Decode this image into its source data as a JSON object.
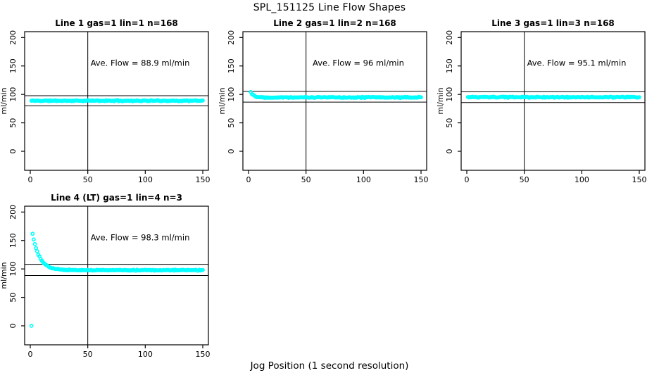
{
  "figure": {
    "title": "SPL_151125  Line Flow Shapes",
    "xlabel": "Jog Position (1 second resolution)",
    "background_color": "#ffffff",
    "point_color": "#00ffff",
    "axis_color": "#000000",
    "text_color": "#000000"
  },
  "chart_data": [
    {
      "type": "scatter",
      "title": "Line 1 gas=1 lin=1 n=168",
      "annotation": "Ave. Flow =  88.9  ml/min",
      "avg_flow_ml_min": 88.9,
      "n_points": 168,
      "ylabel": "ml/min",
      "x_ticks": [
        0,
        50,
        100,
        150
      ],
      "y_ticks": [
        0,
        50,
        100,
        150,
        200
      ],
      "xlim": [
        -4.9,
        154.9
      ],
      "ylim": [
        -33.4,
        210.3
      ],
      "grid": false,
      "ref_vline_x": 50,
      "ref_hlines": [
        80.0,
        97.8
      ],
      "series": {
        "name": "line-1-flow",
        "marker": "open-circle",
        "x_start": 1,
        "x_end": 150,
        "x_step": 1,
        "baseline": 88.9,
        "transient_amp": 0,
        "transient_x0": 1,
        "transient_tau": 1,
        "noise": 1.1,
        "seed": 11,
        "extra_points": []
      },
      "sample_points": [
        [
          1,
          88.5
        ],
        [
          10,
          89.2
        ],
        [
          25,
          88.3
        ],
        [
          50,
          89.0
        ],
        [
          75,
          88.6
        ],
        [
          100,
          89.1
        ],
        [
          125,
          88.8
        ],
        [
          150,
          88.9
        ]
      ]
    },
    {
      "type": "scatter",
      "title": "Line 2 gas=1 lin=2 n=168",
      "annotation": "Ave. Flow =  96  ml/min",
      "avg_flow_ml_min": 96,
      "n_points": 168,
      "ylabel": "ml/min",
      "x_ticks": [
        0,
        50,
        100,
        150
      ],
      "y_ticks": [
        0,
        50,
        100,
        150,
        200
      ],
      "xlim": [
        -4.9,
        154.9
      ],
      "ylim": [
        -33.4,
        210.3
      ],
      "grid": false,
      "ref_vline_x": 50,
      "ref_hlines": [
        86.4,
        105.6
      ],
      "series": {
        "name": "line-2-flow",
        "marker": "open-circle",
        "x_start": 2,
        "x_end": 150,
        "x_step": 1,
        "baseline": 94.8,
        "transient_amp": 9.5,
        "transient_x0": 2,
        "transient_tau": 2.5,
        "noise": 1.1,
        "seed": 22,
        "extra_points": []
      },
      "sample_points": [
        [
          2,
          104
        ],
        [
          4,
          99
        ],
        [
          6,
          96.5
        ],
        [
          10,
          95.2
        ],
        [
          50,
          94.9
        ],
        [
          100,
          94.6
        ],
        [
          150,
          94.7
        ]
      ]
    },
    {
      "type": "scatter",
      "title": "Line 3 gas=1 lin=3 n=168",
      "annotation": "Ave. Flow =  95.1  ml/min",
      "avg_flow_ml_min": 95.1,
      "n_points": 168,
      "ylabel": "ml/min",
      "x_ticks": [
        0,
        50,
        100,
        150
      ],
      "y_ticks": [
        0,
        50,
        100,
        150,
        200
      ],
      "xlim": [
        -4.9,
        154.9
      ],
      "ylim": [
        -33.4,
        210.3
      ],
      "grid": false,
      "ref_vline_x": 50,
      "ref_hlines": [
        85.6,
        104.6
      ],
      "series": {
        "name": "line-3-flow",
        "marker": "open-circle",
        "x_start": 1,
        "x_end": 150,
        "x_step": 1,
        "baseline": 95.1,
        "transient_amp": 0,
        "transient_x0": 1,
        "transient_tau": 1,
        "noise": 1.1,
        "seed": 33,
        "extra_points": []
      },
      "sample_points": [
        [
          1,
          95.5
        ],
        [
          10,
          95.0
        ],
        [
          25,
          95.3
        ],
        [
          50,
          94.9
        ],
        [
          75,
          95.2
        ],
        [
          100,
          95.0
        ],
        [
          125,
          95.1
        ],
        [
          150,
          95.0
        ]
      ]
    },
    {
      "type": "scatter",
      "title": "Line 4 (LT) gas=1 lin=4 n=3",
      "annotation": "Ave. Flow =  98.3  ml/min",
      "avg_flow_ml_min": 98.3,
      "n_points": 3,
      "ylabel": "ml/min",
      "x_ticks": [
        0,
        50,
        100,
        150
      ],
      "y_ticks": [
        0,
        50,
        100,
        150,
        200
      ],
      "xlim": [
        -4.9,
        154.9
      ],
      "ylim": [
        -33.4,
        210.3
      ],
      "grid": false,
      "ref_vline_x": 50,
      "ref_hlines": [
        88.5,
        108.1
      ],
      "series": {
        "name": "line-4-flow",
        "marker": "open-circle",
        "x_start": 2,
        "x_end": 150,
        "x_step": 1,
        "baseline": 97.8,
        "transient_amp": 64,
        "transient_x0": 2,
        "transient_tau": 6,
        "noise": 1.0,
        "seed": 44,
        "extra_points": [
          [
            1,
            0
          ]
        ]
      },
      "sample_points": [
        [
          1,
          0
        ],
        [
          2,
          162
        ],
        [
          4,
          155
        ],
        [
          6,
          145
        ],
        [
          8,
          130
        ],
        [
          10,
          120
        ],
        [
          12,
          112
        ],
        [
          15,
          106
        ],
        [
          20,
          101
        ],
        [
          25,
          99
        ],
        [
          50,
          98
        ],
        [
          100,
          97.8
        ],
        [
          150,
          97.5
        ]
      ]
    }
  ]
}
